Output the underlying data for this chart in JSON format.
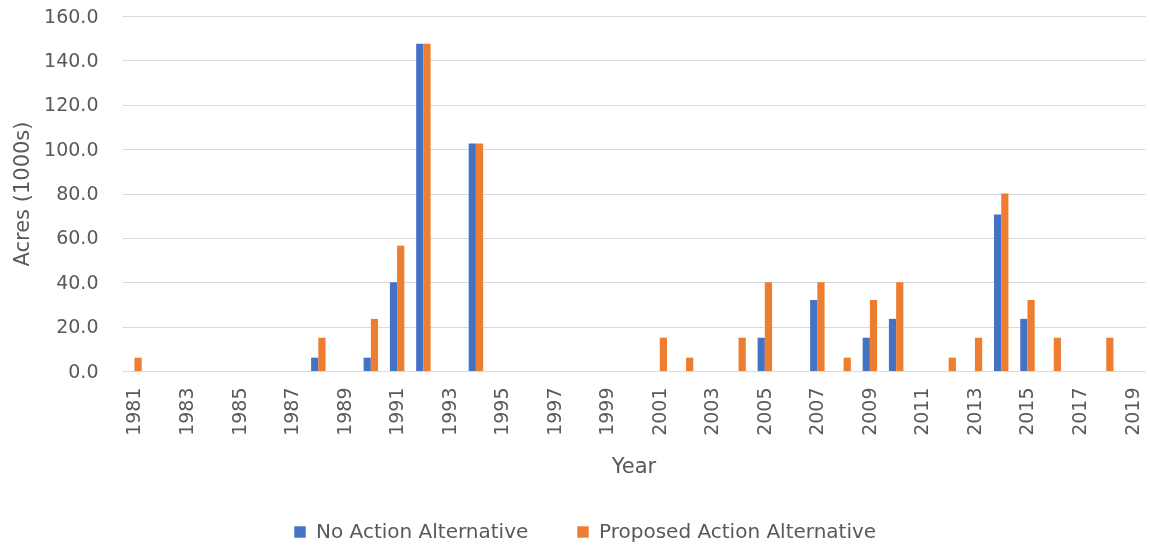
{
  "chart_data": {
    "type": "bar",
    "xlabel": "Year",
    "ylabel": "Acres (1000s)",
    "categories": [
      "1981",
      null,
      "1983",
      null,
      "1985",
      null,
      "1987",
      null,
      "1989",
      null,
      "1991",
      null,
      "1993",
      null,
      "1995",
      null,
      "1997",
      null,
      "1999",
      null,
      "2001",
      null,
      "2003",
      null,
      "2005",
      null,
      "2007",
      null,
      "2009",
      null,
      "2011",
      null,
      "2013",
      null,
      "2015",
      null,
      "2017",
      null,
      "2019"
    ],
    "series": [
      {
        "name": "No Action Alternative",
        "color": "#4472c4",
        "values": [
          null,
          null,
          null,
          null,
          null,
          null,
          null,
          6,
          null,
          6,
          40,
          147.5,
          null,
          102.5,
          null,
          null,
          null,
          null,
          null,
          null,
          null,
          null,
          null,
          null,
          15,
          null,
          32,
          null,
          15,
          23.5,
          null,
          null,
          null,
          70.5,
          23.5,
          null,
          null,
          null,
          null
        ]
      },
      {
        "name": "Proposed Action Alternative",
        "color": "#ed7d31",
        "values": [
          6,
          null,
          null,
          null,
          null,
          null,
          null,
          15,
          null,
          23.5,
          56.5,
          147.5,
          null,
          102.5,
          null,
          null,
          null,
          null,
          null,
          null,
          15,
          6,
          null,
          15,
          40,
          null,
          40,
          6,
          32,
          40,
          null,
          6,
          15,
          80,
          32,
          15,
          null,
          15,
          null
        ]
      }
    ],
    "ylim": [
      0,
      160
    ],
    "yticks": [
      {
        "value": 0,
        "label": "0.0"
      },
      {
        "value": 20,
        "label": "20.0"
      },
      {
        "value": 40,
        "label": "40.0"
      },
      {
        "value": 60,
        "label": "60.0"
      },
      {
        "value": 80,
        "label": "80.0"
      },
      {
        "value": 100,
        "label": "100.0"
      },
      {
        "value": 120,
        "label": "120.0"
      },
      {
        "value": 140,
        "label": "140.0"
      },
      {
        "value": 160,
        "label": "160.0"
      }
    ],
    "grid": "y",
    "legend": "bottom"
  }
}
